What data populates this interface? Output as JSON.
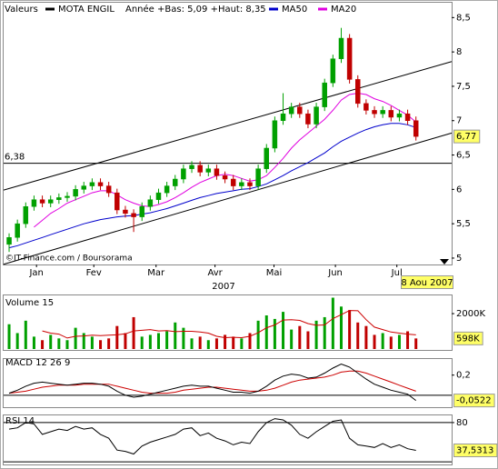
{
  "chart_data": [
    {
      "type": "candlestick",
      "legend_title": "Valeurs",
      "name": "MOTA ENGIL",
      "subtitle": "Année +Bas: 5,09 +Haut: 8,35",
      "x_label": "2007",
      "date_label": "8 Aou 2007",
      "credit": "©IT-Finance.com / Boursorama",
      "xlim": [
        -0.66,
        53.3
      ],
      "xticks": [
        {
          "value": 3.3,
          "label": "Jan"
        },
        {
          "value": 10.2,
          "label": "Fev"
        },
        {
          "value": 17.7,
          "label": "Mar"
        },
        {
          "value": 24.8,
          "label": "Avr"
        },
        {
          "value": 31.9,
          "label": "Mai"
        },
        {
          "value": 39.3,
          "label": "Jun"
        },
        {
          "value": 46.7,
          "label": "Jul"
        }
      ],
      "ylim": [
        4.92,
        8.65
      ],
      "yticks": [
        5,
        {
          "value": 5.5,
          "label": "5,5"
        },
        6,
        {
          "value": 6.5,
          "label": "6,5"
        },
        7,
        {
          "value": 7.5,
          "label": "7,5"
        },
        8,
        {
          "value": 8.5,
          "label": "8,5"
        }
      ],
      "color_up": "#00a000",
      "color_down": "#c00000",
      "open": [
        5.2,
        5.3,
        5.5,
        5.75,
        5.85,
        5.8,
        5.85,
        5.88,
        5.9,
        6.0,
        6.05,
        6.1,
        6.05,
        5.95,
        5.7,
        5.65,
        5.6,
        5.75,
        5.85,
        5.95,
        6.05,
        6.15,
        6.3,
        6.35,
        6.25,
        6.3,
        6.2,
        6.15,
        6.05,
        6.1,
        6.05,
        6.3,
        6.6,
        7.0,
        7.1,
        7.2,
        7.1,
        6.95,
        7.2,
        7.55,
        7.9,
        8.2,
        7.6,
        7.25,
        7.15,
        7.1,
        7.15,
        7.05,
        7.1,
        7.0
      ],
      "high": [
        5.36,
        5.56,
        5.81,
        5.91,
        5.91,
        5.91,
        5.94,
        5.96,
        6.06,
        6.11,
        6.16,
        6.16,
        6.11,
        6.01,
        5.76,
        5.71,
        5.81,
        5.91,
        6.01,
        6.11,
        6.21,
        6.36,
        6.41,
        6.41,
        6.36,
        6.36,
        6.26,
        6.21,
        6.16,
        6.16,
        6.36,
        6.66,
        7.06,
        7.4,
        7.26,
        7.26,
        7.16,
        7.26,
        7.61,
        7.96,
        8.35,
        8.26,
        7.66,
        7.31,
        7.21,
        7.21,
        7.21,
        7.16,
        7.16,
        7.06
      ],
      "low": [
        5.09,
        5.24,
        5.44,
        5.69,
        5.74,
        5.74,
        5.79,
        5.82,
        5.84,
        5.94,
        5.99,
        5.99,
        5.89,
        5.64,
        5.59,
        5.38,
        5.54,
        5.69,
        5.79,
        5.89,
        5.99,
        6.09,
        6.24,
        6.19,
        6.19,
        6.14,
        6.09,
        5.99,
        5.99,
        5.99,
        5.99,
        6.24,
        6.54,
        6.94,
        7.04,
        7.04,
        6.89,
        6.89,
        7.14,
        7.49,
        7.84,
        7.54,
        7.19,
        7.09,
        7.04,
        7.04,
        6.99,
        6.99,
        6.94,
        6.71
      ],
      "close": [
        5.3,
        5.5,
        5.75,
        5.85,
        5.8,
        5.85,
        5.88,
        5.9,
        6.0,
        6.05,
        6.1,
        6.05,
        5.95,
        5.7,
        5.65,
        5.6,
        5.75,
        5.85,
        5.95,
        6.05,
        6.15,
        6.3,
        6.35,
        6.25,
        6.3,
        6.2,
        6.15,
        6.05,
        6.1,
        6.05,
        6.3,
        6.6,
        7.0,
        7.1,
        7.2,
        7.1,
        6.95,
        7.2,
        7.55,
        7.9,
        8.2,
        7.6,
        7.25,
        7.15,
        7.1,
        7.15,
        7.05,
        7.1,
        7.0,
        6.77
      ],
      "last_label": "6,77",
      "series": [
        {
          "name": "MA50",
          "color": "#0000cc",
          "values": [
            5.15,
            5.18,
            5.22,
            5.26,
            5.3,
            5.34,
            5.38,
            5.42,
            5.46,
            5.5,
            5.53,
            5.56,
            5.58,
            5.6,
            5.61,
            5.62,
            5.64,
            5.66,
            5.69,
            5.72,
            5.76,
            5.8,
            5.84,
            5.88,
            5.91,
            5.94,
            5.96,
            5.98,
            6.0,
            6.01,
            6.04,
            6.08,
            6.14,
            6.2,
            6.27,
            6.33,
            6.39,
            6.46,
            6.53,
            6.62,
            6.7,
            6.76,
            6.82,
            6.87,
            6.91,
            6.94,
            6.96,
            6.96,
            6.94,
            6.9
          ]
        },
        {
          "name": "MA20",
          "color": "#e000e0",
          "values": [
            null,
            null,
            null,
            5.45,
            5.55,
            5.65,
            5.72,
            5.8,
            5.85,
            5.9,
            5.95,
            5.98,
            5.98,
            5.92,
            5.85,
            5.8,
            5.76,
            5.75,
            5.78,
            5.82,
            5.88,
            5.95,
            6.03,
            6.1,
            6.15,
            6.2,
            6.22,
            6.2,
            6.16,
            6.12,
            6.14,
            6.2,
            6.32,
            6.45,
            6.6,
            6.72,
            6.82,
            6.92,
            7.02,
            7.15,
            7.3,
            7.38,
            7.4,
            7.38,
            7.32,
            7.28,
            7.22,
            7.15,
            7.08,
            6.98
          ]
        }
      ],
      "hline": {
        "value": 6.38,
        "label": "6,38"
      },
      "trendlines": [
        {
          "x": [
            -0.66,
            53.3
          ],
          "y": [
            5.99,
            7.86
          ]
        },
        {
          "x": [
            -0.66,
            53.3
          ],
          "y": [
            4.91,
            6.82
          ]
        }
      ]
    },
    {
      "type": "bar",
      "title": "Volume 15",
      "ylim": [
        0,
        3030000
      ],
      "yticks": [
        {
          "value": 2000000,
          "label": "2000K"
        }
      ],
      "values": [
        1400000,
        900000,
        1600000,
        700000,
        500000,
        800000,
        600000,
        500000,
        1200000,
        900000,
        700000,
        500000,
        600000,
        1300000,
        900000,
        1800000,
        700000,
        800000,
        900000,
        1000000,
        1500000,
        1200000,
        600000,
        700000,
        500000,
        600000,
        800000,
        700000,
        600000,
        900000,
        1600000,
        1900000,
        1700000,
        2100000,
        1100000,
        1300000,
        1000000,
        1600000,
        1800000,
        2900000,
        2400000,
        2200000,
        1500000,
        1300000,
        800000,
        900000,
        700000,
        800000,
        1000000,
        598000
      ],
      "last_label": "598K",
      "line_color": "#cc0000",
      "line_values": [
        null,
        null,
        null,
        null,
        1020000,
        900000,
        840000,
        620000,
        720000,
        740000,
        780000,
        760000,
        780000,
        800000,
        860000,
        1020000,
        1060000,
        1100000,
        1020000,
        1040000,
        980000,
        1000000,
        1000000,
        960000,
        900000,
        720000,
        640000,
        660000,
        640000,
        720000,
        920000,
        1200000,
        1360000,
        1640000,
        1660000,
        1620000,
        1440000,
        1340000,
        1360000,
        1720000,
        1940000,
        2180000,
        2160000,
        1660000,
        1240000,
        1100000,
        960000,
        900000,
        840000,
        800000
      ]
    },
    {
      "type": "line",
      "title": "MACD 12 26 9",
      "ylim": [
        -0.11,
        0.36
      ],
      "yticks": [
        {
          "value": 0.2,
          "label": "0,2"
        }
      ],
      "hlines": [
        0
      ],
      "last_label": "-0,0522",
      "series": [
        {
          "color": "#000000",
          "values": [
            0.02,
            0.05,
            0.09,
            0.12,
            0.13,
            0.12,
            0.11,
            0.1,
            0.11,
            0.12,
            0.12,
            0.11,
            0.09,
            0.04,
            0.0,
            -0.02,
            -0.01,
            0.01,
            0.03,
            0.05,
            0.07,
            0.09,
            0.1,
            0.09,
            0.09,
            0.07,
            0.05,
            0.03,
            0.03,
            0.02,
            0.04,
            0.09,
            0.15,
            0.19,
            0.21,
            0.2,
            0.17,
            0.18,
            0.22,
            0.27,
            0.31,
            0.28,
            0.22,
            0.16,
            0.11,
            0.08,
            0.05,
            0.03,
            0.01,
            -0.0522
          ]
        },
        {
          "color": "#cc0000",
          "values": [
            0.02,
            0.03,
            0.04,
            0.06,
            0.08,
            0.09,
            0.1,
            0.1,
            0.1,
            0.11,
            0.11,
            0.11,
            0.11,
            0.09,
            0.07,
            0.05,
            0.03,
            0.02,
            0.02,
            0.02,
            0.03,
            0.05,
            0.06,
            0.07,
            0.08,
            0.08,
            0.07,
            0.06,
            0.05,
            0.04,
            0.04,
            0.05,
            0.07,
            0.1,
            0.13,
            0.15,
            0.16,
            0.17,
            0.18,
            0.2,
            0.23,
            0.24,
            0.24,
            0.22,
            0.19,
            0.16,
            0.13,
            0.1,
            0.07,
            0.04
          ]
        }
      ]
    },
    {
      "type": "line",
      "title": "RSI 14",
      "ylim": [
        16,
        91
      ],
      "yticks": [
        80
      ],
      "hlines": [
        20,
        80
      ],
      "last_label": "37,5313",
      "series": [
        {
          "color": "#000000",
          "values": [
            70,
            72,
            80,
            78,
            62,
            66,
            70,
            68,
            74,
            70,
            72,
            62,
            56,
            38,
            36,
            32,
            44,
            50,
            54,
            58,
            62,
            70,
            72,
            60,
            64,
            56,
            52,
            46,
            50,
            48,
            66,
            80,
            86,
            84,
            76,
            62,
            56,
            66,
            74,
            82,
            84,
            56,
            46,
            44,
            42,
            48,
            42,
            46,
            40,
            37.5313
          ]
        }
      ]
    }
  ]
}
